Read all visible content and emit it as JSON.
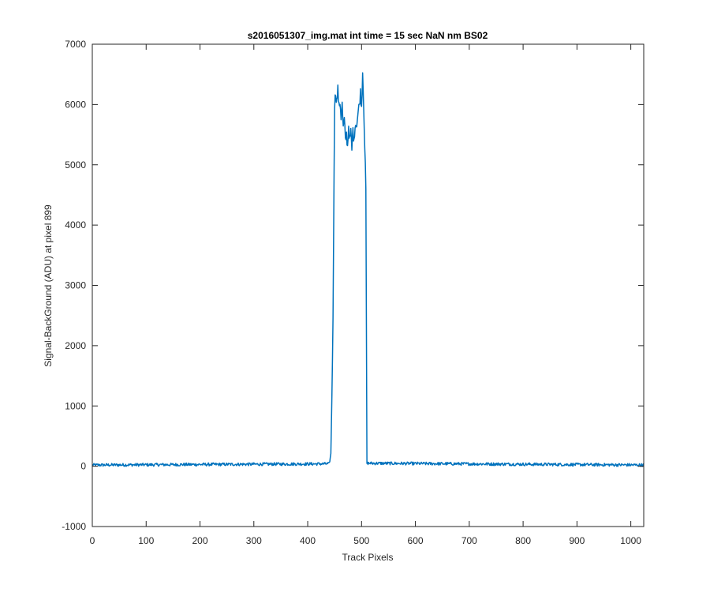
{
  "chart_data": {
    "type": "line",
    "title": "s2016051307_img.mat int time = 15 sec  NaN nm BS02",
    "xlabel": "Track Pixels",
    "ylabel": "Signal-BackGround (ADU) at pixel 899",
    "xlim": [
      0,
      1024
    ],
    "ylim": [
      -1000,
      7000
    ],
    "xticks": [
      0,
      100,
      200,
      300,
      400,
      500,
      600,
      700,
      800,
      900,
      1000
    ],
    "yticks": [
      -1000,
      0,
      1000,
      2000,
      3000,
      4000,
      5000,
      6000,
      7000
    ],
    "grid": false,
    "box": true,
    "series": [
      {
        "color": "#0072BD",
        "baseline": {
          "x_range": [
            0,
            1024
          ],
          "level": 20,
          "noise": 25
        },
        "x": [
          0,
          440,
          443,
          445,
          447,
          449,
          450,
          452,
          454,
          456,
          458,
          460,
          462,
          464,
          466,
          468,
          470,
          472,
          474,
          476,
          478,
          480,
          482,
          484,
          486,
          488,
          490,
          492,
          494,
          496,
          498,
          500,
          502,
          504,
          506,
          508,
          510,
          1024
        ],
        "y": [
          20,
          40,
          200,
          1200,
          2400,
          5000,
          6000,
          6200,
          6050,
          6250,
          5950,
          6050,
          5800,
          6000,
          5600,
          5750,
          5400,
          5500,
          5300,
          5650,
          5400,
          5550,
          5250,
          5600,
          5350,
          5700,
          5650,
          5750,
          5900,
          6000,
          6200,
          5950,
          6550,
          6000,
          5300,
          4600,
          50,
          20
        ]
      }
    ]
  }
}
